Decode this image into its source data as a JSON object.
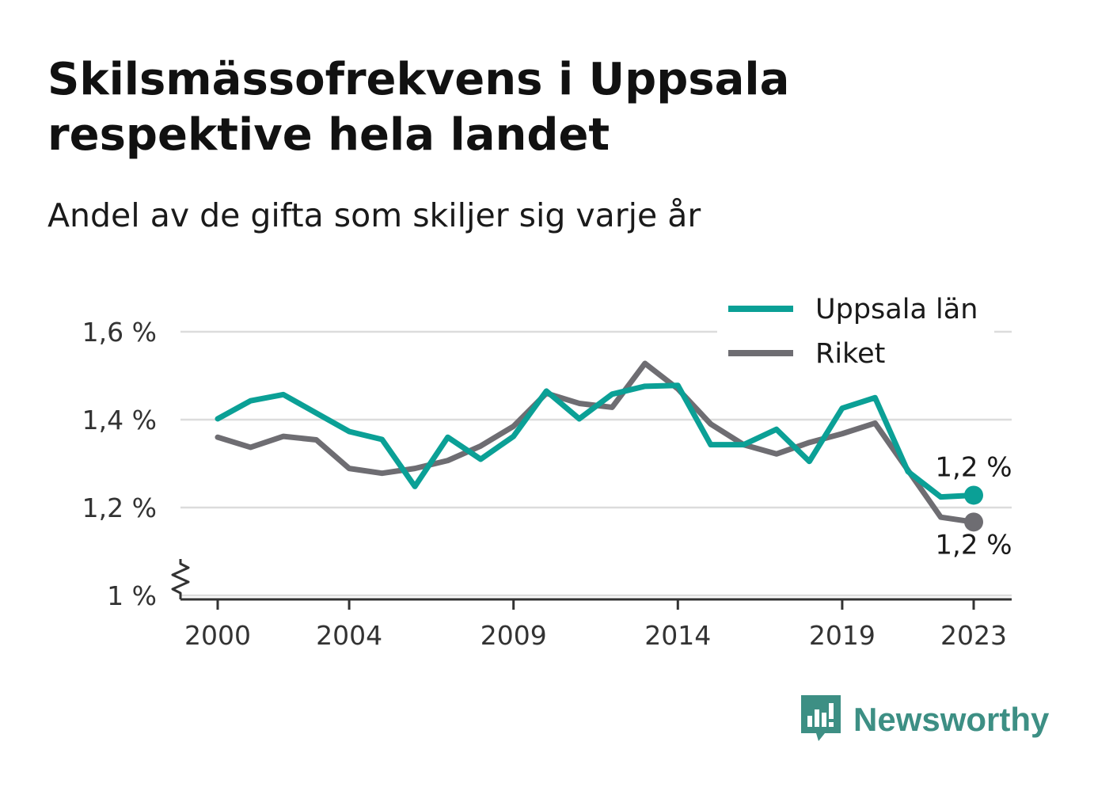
{
  "title": "Skilsmässofrekvens i Uppsala respektive hela landet",
  "subtitle": "Andel av de gifta som skiljer sig varje år",
  "brand": "Newsworthy",
  "colors": {
    "uppsala": "#0ba096",
    "riket": "#6e6d72",
    "brand": "#3d8f84"
  },
  "chart_data": {
    "type": "line",
    "title": "Skilsmässofrekvens i Uppsala respektive hela landet",
    "subtitle": "Andel av de gifta som skiljer sig varje år",
    "xlabel": "",
    "ylabel": "",
    "x": [
      2000,
      2001,
      2002,
      2003,
      2004,
      2005,
      2006,
      2007,
      2008,
      2009,
      2010,
      2011,
      2012,
      2013,
      2014,
      2015,
      2016,
      2017,
      2018,
      2019,
      2020,
      2021,
      2022,
      2023
    ],
    "x_ticks": [
      2000,
      2004,
      2009,
      2014,
      2019,
      2023
    ],
    "x_tick_labels": [
      "2000",
      "2004",
      "2009",
      "2014",
      "2019",
      "2023"
    ],
    "y_ticks": [
      1.0,
      1.2,
      1.4,
      1.6
    ],
    "y_tick_labels": [
      "1 %",
      "1,2 %",
      "1,4 %",
      "1,6 %"
    ],
    "ylim": [
      1.0,
      1.6
    ],
    "y_axis_break": true,
    "grid": true,
    "legend_position": "top-right",
    "series": [
      {
        "name": "Uppsala län",
        "color": "#0ba096",
        "values": [
          1.402,
          1.443,
          1.457,
          1.415,
          1.373,
          1.355,
          1.248,
          1.36,
          1.31,
          1.362,
          1.465,
          1.402,
          1.458,
          1.476,
          1.478,
          1.343,
          1.343,
          1.378,
          1.305,
          1.426,
          1.45,
          1.282,
          1.224,
          1.228
        ],
        "end_label": "1,2 %"
      },
      {
        "name": "Riket",
        "color": "#6e6d72",
        "values": [
          1.36,
          1.337,
          1.362,
          1.354,
          1.289,
          1.278,
          1.289,
          1.307,
          1.34,
          1.385,
          1.46,
          1.437,
          1.428,
          1.528,
          1.47,
          1.39,
          1.343,
          1.322,
          1.348,
          1.368,
          1.392,
          1.285,
          1.178,
          1.167
        ],
        "end_label": "1,2 %"
      }
    ]
  }
}
